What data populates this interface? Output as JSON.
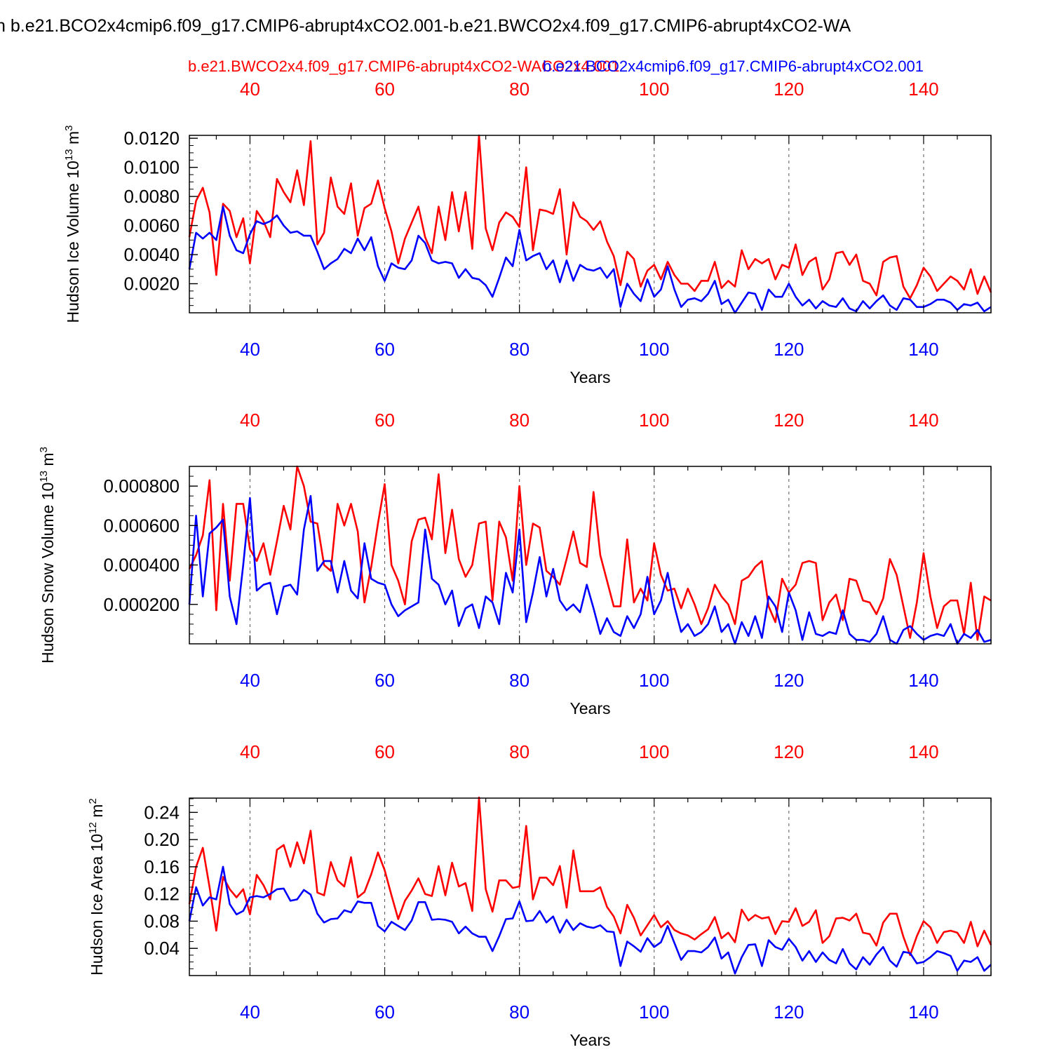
{
  "figure": {
    "title": "n b.e21.BCO2x4cmip6.f09_g17.CMIP6-abrupt4xCO2.001-b.e21.BWCO2x4.f09_g17.CMIP6-abrupt4xCO2-WA",
    "colors": {
      "red": "#ff0000",
      "blue": "#0000ff",
      "axis": "#000000",
      "grid": "#555555"
    }
  },
  "chart_data": [
    {
      "type": "line",
      "title": "",
      "xlabel": "Years",
      "ylabel": "Hudson Ice Volume 10^13 m^3",
      "ylabel_main": "Hudson Ice Volume 10",
      "ylabel_exp": "13",
      "ylabel_unit": " m",
      "ylabel_unit_exp": "3",
      "xlim": [
        31,
        150
      ],
      "ylim": [
        0.0,
        0.0122
      ],
      "yticks": [
        0.002,
        0.004,
        0.006,
        0.008,
        0.01,
        0.012
      ],
      "ytick_labels": [
        "0.0020",
        "0.0040",
        "0.0060",
        "0.0080",
        "0.0100",
        "0.0120"
      ],
      "yminor_step": 0.0005,
      "xticks": [
        40,
        60,
        80,
        100,
        120,
        140
      ],
      "xtick_labels": [
        "40",
        "60",
        "80",
        "100",
        "120",
        "140"
      ],
      "xgrid": [
        40,
        60,
        80,
        100,
        120,
        140
      ],
      "legend": [
        "b.e21.BWCO2x4.f09_g17.CMIP6-abrupt4xCO2-WACO2x4.001",
        "b.e21.BCO2x4cmip6.f09_g17.CMIP6-abrupt4xCO2.001"
      ],
      "x_start": 31,
      "series": [
        {
          "name": "b.e21.BWCO2x4.f09_g17.CMIP6-abrupt4xCO2-WACO2x4.001",
          "color": "#ff0000",
          "values": [
            0.0052,
            0.0077,
            0.0086,
            0.0069,
            0.0026,
            0.0075,
            0.007,
            0.0052,
            0.0065,
            0.0034,
            0.007,
            0.0063,
            0.0052,
            0.0092,
            0.0083,
            0.0076,
            0.0098,
            0.0074,
            0.0118,
            0.0047,
            0.0055,
            0.0093,
            0.0073,
            0.0068,
            0.0089,
            0.0053,
            0.0072,
            0.0075,
            0.0091,
            0.0072,
            0.0056,
            0.0034,
            0.0051,
            0.0062,
            0.0073,
            0.0052,
            0.0041,
            0.0073,
            0.005,
            0.0083,
            0.0056,
            0.0083,
            0.0044,
            0.0122,
            0.0058,
            0.0043,
            0.0062,
            0.0069,
            0.0066,
            0.0059,
            0.01,
            0.0043,
            0.0071,
            0.007,
            0.0068,
            0.0085,
            0.004,
            0.0076,
            0.0066,
            0.0063,
            0.0057,
            0.0063,
            0.0049,
            0.0039,
            0.0019,
            0.0042,
            0.0037,
            0.0018,
            0.0029,
            0.0033,
            0.0023,
            0.0035,
            0.0026,
            0.002,
            0.002,
            0.0015,
            0.0022,
            0.0022,
            0.0035,
            0.0017,
            0.0022,
            0.0018,
            0.0043,
            0.003,
            0.0037,
            0.0034,
            0.0037,
            0.0023,
            0.0033,
            0.0031,
            0.0047,
            0.0026,
            0.0035,
            0.0038,
            0.0016,
            0.0023,
            0.0041,
            0.0042,
            0.0033,
            0.004,
            0.0022,
            0.002,
            0.0012,
            0.0035,
            0.0038,
            0.0039,
            0.0018,
            0.001,
            0.0019,
            0.0031,
            0.0025,
            0.0015,
            0.002,
            0.0025,
            0.0022,
            0.0016,
            0.003,
            0.0013,
            0.0025,
            0.0014
          ]
        },
        {
          "name": "b.e21.BCO2x4cmip6.f09_g17.CMIP6-abrupt4xCO2.001",
          "color": "#0000ff",
          "values": [
            0.003,
            0.0055,
            0.0051,
            0.0055,
            0.005,
            0.0073,
            0.0053,
            0.0043,
            0.0041,
            0.0054,
            0.0063,
            0.0061,
            0.0063,
            0.0067,
            0.006,
            0.0055,
            0.0056,
            0.0053,
            0.0053,
            0.0042,
            0.003,
            0.0034,
            0.0037,
            0.0044,
            0.0041,
            0.0051,
            0.0043,
            0.0052,
            0.0032,
            0.0022,
            0.0034,
            0.0031,
            0.003,
            0.0036,
            0.0053,
            0.0048,
            0.0036,
            0.0034,
            0.0035,
            0.0034,
            0.0024,
            0.003,
            0.0024,
            0.0023,
            0.0019,
            0.0011,
            0.0024,
            0.0038,
            0.0032,
            0.0057,
            0.0036,
            0.0039,
            0.0041,
            0.003,
            0.0036,
            0.0021,
            0.0036,
            0.0022,
            0.0033,
            0.003,
            0.0029,
            0.0031,
            0.0024,
            0.003,
            0.0004,
            0.002,
            0.0013,
            0.0008,
            0.0023,
            0.0011,
            0.0016,
            0.0032,
            0.0016,
            0.0004,
            0.0009,
            0.001,
            0.0008,
            0.0013,
            0.0022,
            0.0006,
            0.0009,
            0.0,
            0.0007,
            0.0014,
            0.0013,
            0.0002,
            0.0016,
            0.0011,
            0.0011,
            0.002,
            0.0011,
            0.0005,
            0.0009,
            0.0003,
            0.0008,
            0.0005,
            0.0004,
            0.001,
            0.0003,
            0.0001,
            0.0008,
            0.0003,
            0.0008,
            0.0012,
            0.0005,
            0.0002,
            0.001,
            0.0009,
            0.0004,
            0.0004,
            0.0006,
            0.0009,
            0.0009,
            0.0007,
            0.0002,
            0.0006,
            0.0005,
            0.0007,
            0.0001,
            0.0004
          ]
        }
      ]
    },
    {
      "type": "line",
      "title": "",
      "xlabel": "Years",
      "ylabel": "Hudson Snow Volume 10^13 m^3",
      "ylabel_main": "Hudson Snow Volume 10",
      "ylabel_exp": "13",
      "ylabel_unit": " m",
      "ylabel_unit_exp": "3",
      "xlim": [
        31,
        150
      ],
      "ylim": [
        0.0,
        0.0009
      ],
      "yticks": [
        0.0002,
        0.0004,
        0.0006,
        0.0008
      ],
      "ytick_labels": [
        "0.000200",
        "0.000400",
        "0.000600",
        "0.000800"
      ],
      "yminor_step": 5e-05,
      "xticks": [
        40,
        60,
        80,
        100,
        120,
        140
      ],
      "xtick_labels": [
        "40",
        "60",
        "80",
        "100",
        "120",
        "140"
      ],
      "xgrid": [
        40,
        60,
        80,
        100,
        120,
        140
      ],
      "x_start": 31,
      "series": [
        {
          "name": "b.e21.BWCO2x4.f09_g17.CMIP6-abrupt4xCO2-WACO2x4.001",
          "color": "#ff0000",
          "values": [
            0.00038,
            0.00045,
            0.00055,
            0.00083,
            0.00017,
            0.00071,
            0.00032,
            0.00071,
            0.00071,
            0.00048,
            0.00042,
            0.00051,
            0.00035,
            0.00052,
            0.0007,
            0.00058,
            0.0009,
            0.0008,
            0.00062,
            0.00061,
            0.0004,
            0.00037,
            0.00071,
            0.0006,
            0.00071,
            0.00057,
            0.00021,
            0.00039,
            0.00061,
            0.00081,
            0.0004,
            0.00032,
            0.0002,
            0.00052,
            0.00063,
            0.00064,
            0.00053,
            0.00086,
            0.00046,
            0.00068,
            0.00043,
            0.00034,
            0.0004,
            0.00061,
            0.00062,
            0.00022,
            0.00062,
            0.00054,
            0.00032,
            0.0008,
            0.0004,
            0.00061,
            0.00059,
            0.00037,
            0.00034,
            0.0003,
            0.00043,
            0.00057,
            0.00041,
            0.00039,
            0.00077,
            0.00045,
            0.00032,
            0.00019,
            0.00019,
            0.00053,
            0.00021,
            0.00028,
            0.00022,
            0.00051,
            0.00035,
            0.00027,
            0.00028,
            0.00018,
            0.00028,
            0.0002,
            0.0001,
            0.00018,
            0.0003,
            0.00024,
            0.0002,
            0.0001,
            0.00032,
            0.00034,
            0.00039,
            0.00042,
            0.00019,
            0.00011,
            0.00033,
            0.00026,
            0.0003,
            0.00041,
            0.00042,
            0.00041,
            0.00012,
            0.00021,
            0.00025,
            0.00012,
            0.00033,
            0.00032,
            0.00022,
            0.00021,
            0.00015,
            0.00023,
            0.00043,
            0.00035,
            0.00019,
            3e-05,
            0.00021,
            0.00046,
            0.00024,
            8e-05,
            0.00019,
            0.00022,
            0.00022,
            5e-05,
            0.00031,
            2e-05,
            0.00024,
            0.00022
          ]
        },
        {
          "name": "b.e21.BCO2x4cmip6.f09_g17.CMIP6-abrupt4xCO2.001",
          "color": "#0000ff",
          "values": [
            0.0002,
            0.00065,
            0.00024,
            0.00056,
            0.00059,
            0.00063,
            0.00024,
            0.0001,
            0.0004,
            0.00074,
            0.00027,
            0.0003,
            0.00031,
            0.00015,
            0.00029,
            0.0003,
            0.00025,
            0.00058,
            0.00075,
            0.00037,
            0.00042,
            0.00042,
            0.00026,
            0.00042,
            0.00027,
            0.00023,
            0.00051,
            0.00033,
            0.00031,
            0.0003,
            0.0002,
            0.00014,
            0.00017,
            0.00019,
            0.00021,
            0.00058,
            0.00033,
            0.0003,
            0.0002,
            0.00027,
            9e-05,
            0.00018,
            0.0002,
            8e-05,
            0.00024,
            0.00021,
            0.0001,
            0.00036,
            0.00026,
            0.00058,
            0.00011,
            0.00026,
            0.00044,
            0.00024,
            0.00038,
            0.00022,
            0.00017,
            0.0002,
            0.00016,
            0.0003,
            0.00018,
            5e-05,
            0.00013,
            6e-05,
            4e-05,
            0.00014,
            8e-05,
            0.00015,
            0.00034,
            0.00015,
            0.00022,
            0.00036,
            0.00019,
            6e-05,
            0.0001,
            4e-05,
            6e-05,
            0.0001,
            0.00019,
            6e-05,
            0.0001,
            0.0,
            0.00011,
            4e-05,
            0.00014,
            3e-05,
            0.00024,
            0.00019,
            6e-05,
            0.00026,
            0.00017,
            2e-05,
            0.00016,
            5e-05,
            4e-05,
            6e-05,
            5e-05,
            0.00017,
            5e-05,
            2e-05,
            2e-05,
            1e-05,
            5e-05,
            0.00014,
            2e-05,
            0.0,
            7e-05,
            9e-05,
            5e-05,
            2e-05,
            4e-05,
            5e-05,
            4e-05,
            0.0001,
            0.0,
            5e-05,
            3e-05,
            7e-05,
            1e-05,
            2e-05
          ]
        }
      ]
    },
    {
      "type": "line",
      "title": "",
      "xlabel": "Years",
      "ylabel": "Hudson Ice Area 10^12 m^2",
      "ylabel_main": "Hudson Ice Area 10",
      "ylabel_exp": "12",
      "ylabel_unit": " m",
      "ylabel_unit_exp": "2",
      "xlim": [
        31,
        150
      ],
      "ylim": [
        0.0,
        0.261
      ],
      "yticks": [
        0.04,
        0.08,
        0.12,
        0.16,
        0.2,
        0.24
      ],
      "ytick_labels": [
        "0.04",
        "0.08",
        "0.12",
        "0.16",
        "0.20",
        "0.24"
      ],
      "yminor_step": 0.01,
      "xticks": [
        40,
        60,
        80,
        100,
        120,
        140
      ],
      "xtick_labels": [
        "40",
        "60",
        "80",
        "100",
        "120",
        "140"
      ],
      "xgrid": [
        40,
        60,
        80,
        100,
        120,
        140
      ],
      "x_start": 31,
      "series": [
        {
          "name": "b.e21.BWCO2x4.f09_g17.CMIP6-abrupt4xCO2-WACO2x4.001",
          "color": "#ff0000",
          "values": [
            0.105,
            0.16,
            0.188,
            0.13,
            0.066,
            0.145,
            0.127,
            0.115,
            0.127,
            0.09,
            0.148,
            0.133,
            0.112,
            0.185,
            0.192,
            0.16,
            0.196,
            0.165,
            0.213,
            0.122,
            0.118,
            0.167,
            0.14,
            0.131,
            0.174,
            0.115,
            0.123,
            0.149,
            0.181,
            0.155,
            0.118,
            0.083,
            0.11,
            0.125,
            0.143,
            0.12,
            0.117,
            0.161,
            0.118,
            0.166,
            0.131,
            0.136,
            0.095,
            0.262,
            0.127,
            0.094,
            0.14,
            0.14,
            0.129,
            0.131,
            0.22,
            0.112,
            0.144,
            0.144,
            0.133,
            0.161,
            0.1,
            0.184,
            0.124,
            0.124,
            0.124,
            0.13,
            0.101,
            0.087,
            0.062,
            0.104,
            0.085,
            0.059,
            0.074,
            0.089,
            0.071,
            0.08,
            0.067,
            0.062,
            0.059,
            0.053,
            0.061,
            0.068,
            0.086,
            0.055,
            0.063,
            0.049,
            0.097,
            0.081,
            0.089,
            0.084,
            0.086,
            0.061,
            0.08,
            0.079,
            0.099,
            0.073,
            0.079,
            0.096,
            0.048,
            0.058,
            0.084,
            0.085,
            0.081,
            0.091,
            0.063,
            0.061,
            0.044,
            0.078,
            0.091,
            0.091,
            0.057,
            0.03,
            0.058,
            0.08,
            0.071,
            0.048,
            0.064,
            0.066,
            0.063,
            0.048,
            0.079,
            0.043,
            0.066,
            0.045
          ]
        },
        {
          "name": "b.e21.BCO2x4cmip6.f09_g17.CMIP6-abrupt4xCO2.001",
          "color": "#0000ff",
          "values": [
            0.08,
            0.13,
            0.103,
            0.115,
            0.112,
            0.16,
            0.105,
            0.09,
            0.095,
            0.115,
            0.117,
            0.115,
            0.12,
            0.127,
            0.128,
            0.11,
            0.112,
            0.126,
            0.119,
            0.091,
            0.078,
            0.083,
            0.084,
            0.096,
            0.093,
            0.109,
            0.107,
            0.107,
            0.073,
            0.065,
            0.079,
            0.073,
            0.067,
            0.081,
            0.108,
            0.108,
            0.082,
            0.083,
            0.082,
            0.079,
            0.062,
            0.072,
            0.062,
            0.057,
            0.057,
            0.036,
            0.058,
            0.083,
            0.084,
            0.109,
            0.08,
            0.081,
            0.095,
            0.078,
            0.087,
            0.063,
            0.082,
            0.067,
            0.077,
            0.072,
            0.07,
            0.074,
            0.065,
            0.064,
            0.014,
            0.05,
            0.043,
            0.035,
            0.055,
            0.042,
            0.049,
            0.073,
            0.048,
            0.023,
            0.036,
            0.036,
            0.034,
            0.042,
            0.056,
            0.025,
            0.034,
            0.003,
            0.027,
            0.045,
            0.046,
            0.014,
            0.052,
            0.042,
            0.038,
            0.054,
            0.042,
            0.022,
            0.036,
            0.02,
            0.034,
            0.023,
            0.018,
            0.039,
            0.018,
            0.009,
            0.027,
            0.016,
            0.031,
            0.042,
            0.022,
            0.013,
            0.035,
            0.033,
            0.018,
            0.02,
            0.027,
            0.036,
            0.033,
            0.029,
            0.007,
            0.022,
            0.02,
            0.027,
            0.007,
            0.016
          ]
        }
      ]
    }
  ]
}
